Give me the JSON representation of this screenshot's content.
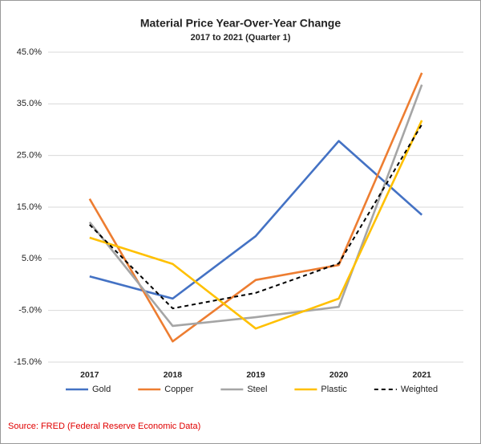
{
  "chart_data": {
    "type": "line",
    "title": "Material Price Year-Over-Year Change",
    "subtitle": "2017 to 2021 (Quarter 1)",
    "categories": [
      "2017",
      "2018",
      "2019",
      "2020",
      "2021"
    ],
    "series": [
      {
        "name": "Gold",
        "color": "#4472c4",
        "values": [
          1.6,
          -2.7,
          9.4,
          27.8,
          13.5
        ]
      },
      {
        "name": "Copper",
        "color": "#ed7d31",
        "values": [
          16.6,
          -11,
          0.9,
          3.8,
          41
        ]
      },
      {
        "name": "Steel",
        "color": "#a5a5a5",
        "values": [
          12.1,
          -8,
          -6.3,
          -4.3,
          38.7
        ]
      },
      {
        "name": "Plastic",
        "color": "#ffc000",
        "values": [
          9.1,
          4,
          -8.5,
          -2.7,
          31.8
        ]
      },
      {
        "name": "Weighted",
        "color": "#000000",
        "dashed": true,
        "values": [
          11.6,
          -4.6,
          -1.6,
          4.1,
          31
        ]
      }
    ],
    "ylim": [
      -15,
      45
    ],
    "yticks": [
      {
        "value": -15,
        "label": "-15.0%"
      },
      {
        "value": -5,
        "label": "-5.0%"
      },
      {
        "value": 5,
        "label": "5.0%"
      },
      {
        "value": 15,
        "label": "15.0%"
      },
      {
        "value": 25,
        "label": "25.0%"
      },
      {
        "value": 35,
        "label": "35.0%"
      },
      {
        "value": 45,
        "label": "45.0%"
      }
    ],
    "grid": true,
    "legend": "bottom",
    "source": "Source: FRED (Federal Reserve Economic Data)"
  }
}
